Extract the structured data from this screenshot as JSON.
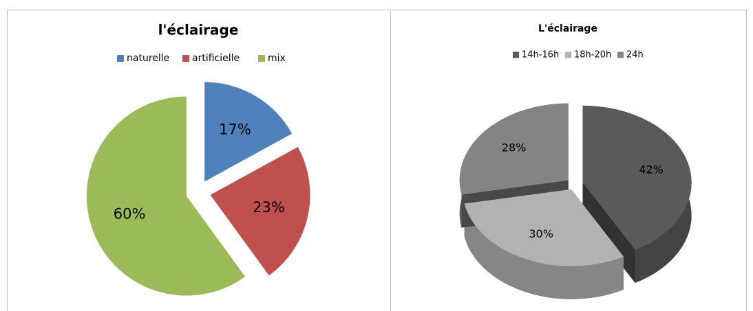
{
  "chart_data": [
    {
      "type": "pie",
      "title": "l'éclairage",
      "categories": [
        "naturelle",
        "artificielle",
        "mix"
      ],
      "values": [
        17,
        23,
        60
      ],
      "value_labels": [
        "17%",
        "23%",
        "60%"
      ],
      "colors": [
        "#4f81bd",
        "#c0504d",
        "#9bbb59"
      ],
      "legend": "top",
      "exploded": true
    },
    {
      "type": "pie3d",
      "title": "L'éclairage",
      "categories": [
        "14h-16h",
        "18h-20h",
        "24h"
      ],
      "values": [
        42,
        30,
        28
      ],
      "value_labels": [
        "42%",
        "30%",
        "28%"
      ],
      "colors": [
        "#5a5a5a",
        "#b2b2b2",
        "#848484"
      ],
      "legend": "top",
      "exploded": true
    }
  ]
}
